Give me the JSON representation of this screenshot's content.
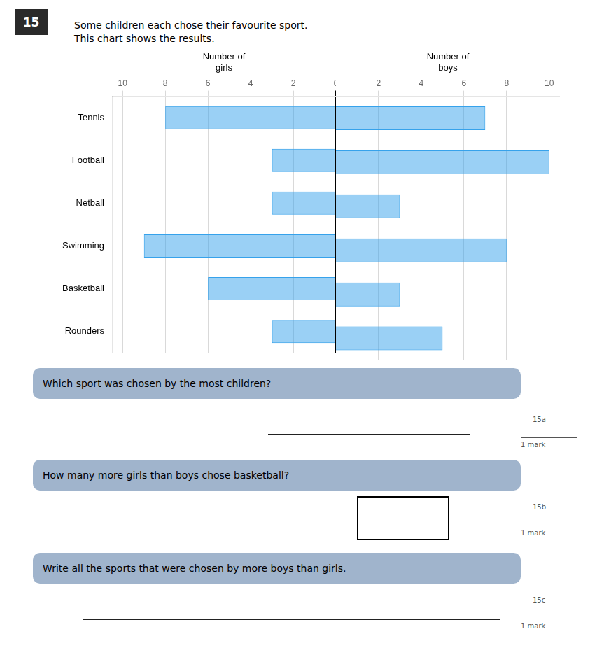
{
  "chart_data": [
    {
      "type": "bar",
      "orientation": "horizontal",
      "categories": [
        "Tennis",
        "Football",
        "Netball",
        "Swimming",
        "Basketball",
        "Rounders"
      ],
      "values": [
        8,
        3,
        3,
        9,
        6,
        3
      ],
      "xlabel": "Number of\ngirls",
      "xlim": [
        10.5,
        0
      ],
      "xticks": [
        0,
        2,
        4,
        6,
        8,
        10
      ],
      "grid": true,
      "annotations": [
        "15",
        "Some children each chose their favourite sport.",
        "This chart shows the results.",
        "Which sport was chosen by the most children?",
        "15a",
        "1 mark",
        "How many more girls than boys chose basketball?",
        "15b",
        "1 mark",
        "Write all the sports that were chosen by more boys than girls.",
        "15c",
        "1 mark"
      ]
    },
    {
      "type": "bar",
      "orientation": "horizontal",
      "categories": [
        "Tennis",
        "Football",
        "Netball",
        "Swimming",
        "Basketball",
        "Rounders"
      ],
      "values": [
        7,
        10,
        3,
        8,
        3,
        5
      ],
      "xlabel": "Number of\nboys",
      "xlim": [
        0,
        10.5
      ],
      "xticks": [
        2,
        4,
        6,
        8,
        10
      ],
      "grid": true,
      "tick_labels": "x"
    }
  ]
}
